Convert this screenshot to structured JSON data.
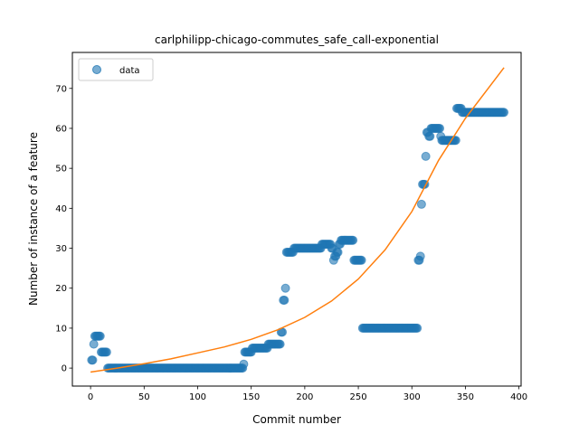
{
  "chart_data": {
    "type": "scatter",
    "title": "carlphilipp-chicago-commutes_safe_call-exponential",
    "xlabel": "Commit number",
    "ylabel": "Number of instance of a feature",
    "xlim": [
      -17,
      402
    ],
    "ylim": [
      -4.5,
      79
    ],
    "xticks": [
      0,
      50,
      100,
      150,
      200,
      250,
      300,
      350,
      400
    ],
    "yticks": [
      0,
      10,
      20,
      30,
      40,
      50,
      60,
      70
    ],
    "grid": false,
    "legend": {
      "placement": "top-left",
      "entries": [
        "data"
      ]
    },
    "colors": {
      "data": "#1f77b4",
      "fit": "#ff7f0e"
    },
    "series": [
      {
        "name": "data",
        "kind": "scatter",
        "segments": [
          {
            "x_start": 1,
            "x_end": 2,
            "y": 2
          },
          {
            "x_start": 3,
            "x_end": 3,
            "y": 6
          },
          {
            "x_start": 4,
            "x_end": 9,
            "y": 8
          },
          {
            "x_start": 10,
            "x_end": 15,
            "y": 4
          },
          {
            "x_start": 16,
            "x_end": 142,
            "y": 0
          },
          {
            "x_start": 143,
            "x_end": 143,
            "y": 1
          },
          {
            "x_start": 144,
            "x_end": 150,
            "y": 4
          },
          {
            "x_start": 151,
            "x_end": 165,
            "y": 5
          },
          {
            "x_start": 166,
            "x_end": 177,
            "y": 6
          },
          {
            "x_start": 178,
            "x_end": 179,
            "y": 9
          },
          {
            "x_start": 180,
            "x_end": 181,
            "y": 17
          },
          {
            "x_start": 182,
            "x_end": 182,
            "y": 20
          },
          {
            "x_start": 183,
            "x_end": 189,
            "y": 29
          },
          {
            "x_start": 190,
            "x_end": 215,
            "y": 30
          },
          {
            "x_start": 216,
            "x_end": 224,
            "y": 31
          },
          {
            "x_start": 225,
            "x_end": 226,
            "y": 30
          },
          {
            "x_start": 227,
            "x_end": 227,
            "y": 27
          },
          {
            "x_start": 228,
            "x_end": 229,
            "y": 28
          },
          {
            "x_start": 230,
            "x_end": 231,
            "y": 29
          },
          {
            "x_start": 232,
            "x_end": 233,
            "y": 31
          },
          {
            "x_start": 234,
            "x_end": 245,
            "y": 32
          },
          {
            "x_start": 246,
            "x_end": 253,
            "y": 27
          },
          {
            "x_start": 254,
            "x_end": 305,
            "y": 10
          },
          {
            "x_start": 306,
            "x_end": 307,
            "y": 27
          },
          {
            "x_start": 308,
            "x_end": 308,
            "y": 28
          },
          {
            "x_start": 309,
            "x_end": 309,
            "y": 41
          },
          {
            "x_start": 310,
            "x_end": 312,
            "y": 46
          },
          {
            "x_start": 313,
            "x_end": 313,
            "y": 53
          },
          {
            "x_start": 314,
            "x_end": 315,
            "y": 59
          },
          {
            "x_start": 316,
            "x_end": 317,
            "y": 58
          },
          {
            "x_start": 318,
            "x_end": 326,
            "y": 60
          },
          {
            "x_start": 327,
            "x_end": 327,
            "y": 58
          },
          {
            "x_start": 328,
            "x_end": 341,
            "y": 57
          },
          {
            "x_start": 342,
            "x_end": 346,
            "y": 65
          },
          {
            "x_start": 347,
            "x_end": 386,
            "y": 64
          }
        ]
      },
      {
        "kind": "line",
        "model": "exponential",
        "x_range": [
          0,
          386
        ],
        "points": [
          [
            0,
            -1
          ],
          [
            25,
            0
          ],
          [
            50,
            1.1
          ],
          [
            75,
            2.3
          ],
          [
            100,
            3.8
          ],
          [
            125,
            5.3
          ],
          [
            150,
            7.2
          ],
          [
            175,
            9.6
          ],
          [
            200,
            12.7
          ],
          [
            225,
            16.8
          ],
          [
            250,
            22.3
          ],
          [
            275,
            29.6
          ],
          [
            300,
            39.2
          ],
          [
            325,
            52
          ],
          [
            350,
            62.5
          ],
          [
            386,
            75.2
          ]
        ]
      }
    ]
  }
}
